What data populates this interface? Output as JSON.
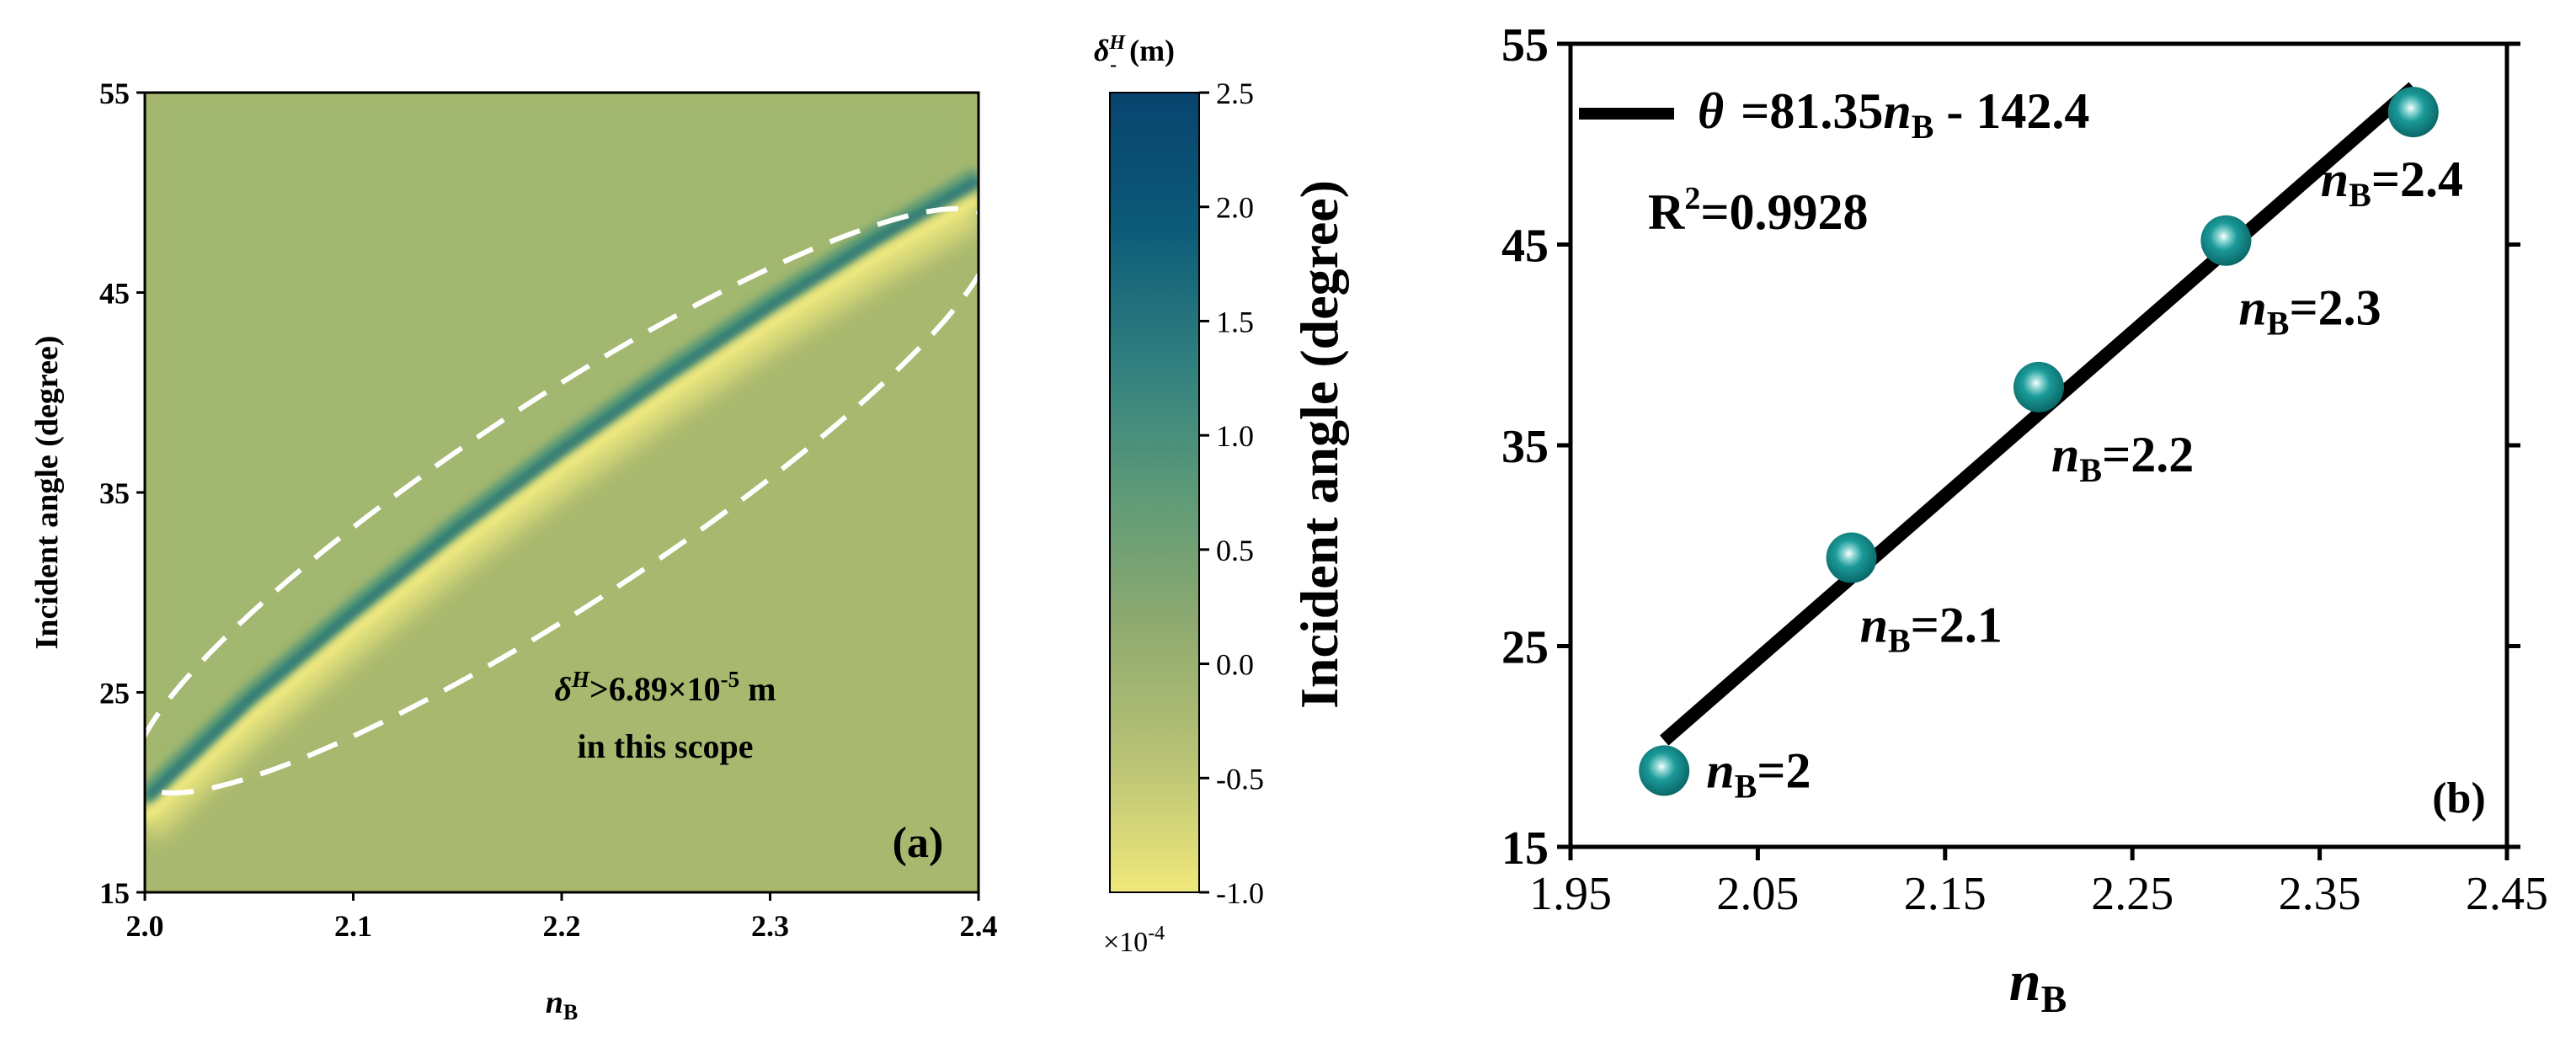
{
  "chart_data": [
    {
      "panel": "(a)",
      "type": "heatmap",
      "xlabel": {
        "italic": "n",
        "sub": "B"
      },
      "ylabel": "Incident angle (degree)",
      "xlim": [
        2.0,
        2.4
      ],
      "ylim": [
        15,
        55
      ],
      "xticks": [
        "2.0",
        "2.1",
        "2.2",
        "2.3",
        "2.4"
      ],
      "xtick_values": [
        2.0,
        2.1,
        2.2,
        2.3,
        2.4
      ],
      "yticks": [
        "15",
        "25",
        "35",
        "45",
        "55"
      ],
      "ytick_values": [
        15,
        25,
        35,
        45,
        55
      ],
      "ridge_curve": {
        "description": "resonant band following theta = 81.35 nB - 142.4 (approx.)",
        "x": [
          2.0,
          2.05,
          2.1,
          2.15,
          2.2,
          2.25,
          2.3,
          2.35,
          2.4
        ],
        "y": [
          19.6,
          24.6,
          29.0,
          33.2,
          37.1,
          40.8,
          44.3,
          47.6,
          50.6
        ]
      },
      "annotation": {
        "line1_sym": "δ",
        "line1_sup": "H",
        "line1_rest": ">6.89×10",
        "line1_exp": "-5",
        "line1_unit": " m",
        "line2": "in this scope"
      },
      "colorbar": {
        "label_sym": "δ",
        "label_sup": "H",
        "label_sub": "-",
        "label_unit": " (m)",
        "min": -1.0,
        "max": 2.5,
        "ticks": [
          "2.5",
          "2.0",
          "1.5",
          "1.0",
          "0.5",
          "0.0",
          "-0.5",
          "-1.0"
        ],
        "tick_values": [
          2.5,
          2.0,
          1.5,
          1.0,
          0.5,
          0.0,
          -0.5,
          -1.0
        ],
        "scale_text": "×10",
        "scale_exp": "-4",
        "colors": [
          "#f0e87a",
          "#b8c275",
          "#8faa6f",
          "#5d9a78",
          "#2f7f80",
          "#0c5a78",
          "#08446e"
        ]
      }
    },
    {
      "panel": "(b)",
      "type": "scatter",
      "xlabel": {
        "italic": "n",
        "sub": "B"
      },
      "ylabel": "Incident angle (degree)",
      "xlim": [
        1.95,
        2.45
      ],
      "ylim": [
        15,
        55
      ],
      "xticks": [
        "1.95",
        "2.05",
        "2.15",
        "2.25",
        "2.35",
        "2.45"
      ],
      "xtick_values": [
        1.95,
        2.05,
        2.15,
        2.25,
        2.35,
        2.45
      ],
      "yticks": [
        "15",
        "25",
        "35",
        "45",
        "55"
      ],
      "ytick_values": [
        15,
        25,
        35,
        45,
        55
      ],
      "points": [
        {
          "x": 2.0,
          "y": 18.8,
          "label_n": "n",
          "label_sub": "B",
          "label_val": "=2"
        },
        {
          "x": 2.1,
          "y": 29.4,
          "label_n": "n",
          "label_sub": "B",
          "label_val": "=2.1"
        },
        {
          "x": 2.2,
          "y": 37.9,
          "label_n": "n",
          "label_sub": "B",
          "label_val": "=2.2"
        },
        {
          "x": 2.3,
          "y": 45.2,
          "label_n": "n",
          "label_sub": "B",
          "label_val": "=2.3"
        },
        {
          "x": 2.4,
          "y": 51.6,
          "label_n": "n",
          "label_sub": "B",
          "label_val": "=2.4"
        }
      ],
      "fit": {
        "slope": 81.35,
        "intercept": -142.4,
        "x_range": [
          2.0,
          2.4
        ]
      },
      "legend": {
        "theta": "θ",
        "eq_pre": "=81.35",
        "eq_n": "n",
        "eq_sub": "B",
        "eq_post": " - 142.4"
      },
      "r2": {
        "base": "R",
        "exp": "2",
        "rest": "=0.9928"
      },
      "marker_color": "#118c8c",
      "line_color": "#000000"
    }
  ]
}
